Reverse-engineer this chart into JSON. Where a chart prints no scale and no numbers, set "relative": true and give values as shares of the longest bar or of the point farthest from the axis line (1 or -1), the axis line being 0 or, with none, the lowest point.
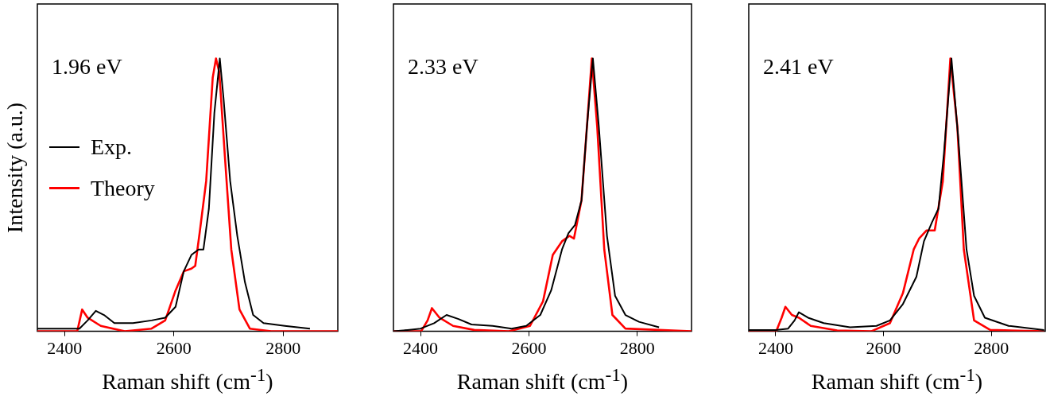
{
  "chart_data": [
    {
      "type": "line",
      "xlabel": "Raman shift (cm$^{-1}$)",
      "ylabel": "Intensity (a.u.)",
      "relative": true,
      "xlim": [
        2350,
        2900
      ],
      "xticks": [
        2400,
        2600,
        2800
      ],
      "legend": "left",
      "annotations": [
        "1.96 eV"
      ],
      "series": [
        {
          "name": "Exp.",
          "color": "#000000",
          "x": [
            2350,
            2427,
            2442,
            2457,
            2472,
            2491,
            2525,
            2559,
            2584,
            2603,
            2618,
            2632,
            2645,
            2654,
            2664,
            2674,
            2684,
            2691,
            2703,
            2716,
            2730,
            2745,
            2764,
            2803,
            2849
          ],
          "values": [
            0.01,
            0.01,
            0.04,
            0.075,
            0.06,
            0.03,
            0.03,
            0.04,
            0.05,
            0.09,
            0.22,
            0.28,
            0.3,
            0.3,
            0.45,
            0.8,
            1.0,
            0.85,
            0.55,
            0.35,
            0.18,
            0.06,
            0.03,
            0.02,
            0.01
          ]
        },
        {
          "name": "Theory",
          "color": "#ff0000",
          "x": [
            2350,
            2423,
            2432,
            2442,
            2466,
            2510,
            2559,
            2584,
            2603,
            2618,
            2632,
            2639,
            2647,
            2659,
            2671,
            2677,
            2683,
            2693,
            2705,
            2720,
            2739,
            2778,
            2900
          ],
          "values": [
            0,
            0,
            0.08,
            0.05,
            0.02,
            0,
            0.01,
            0.04,
            0.15,
            0.22,
            0.23,
            0.24,
            0.36,
            0.55,
            0.93,
            1.0,
            0.95,
            0.65,
            0.3,
            0.08,
            0.01,
            0,
            0
          ]
        }
      ]
    },
    {
      "type": "line",
      "xlabel": "Raman shift (cm$^{-1}$)",
      "relative": true,
      "xlim": [
        2350,
        2900
      ],
      "xticks": [
        2400,
        2600,
        2800
      ],
      "annotations": [
        "2.33 eV"
      ],
      "series": [
        {
          "color": "#000000",
          "x": [
            2350,
            2376,
            2400,
            2425,
            2448,
            2470,
            2494,
            2533,
            2568,
            2595,
            2621,
            2641,
            2661,
            2673,
            2685,
            2697,
            2707,
            2718,
            2729,
            2744,
            2759,
            2778,
            2803,
            2840
          ],
          "values": [
            0,
            0.005,
            0.01,
            0.03,
            0.06,
            0.045,
            0.025,
            0.02,
            0.01,
            0.02,
            0.06,
            0.15,
            0.3,
            0.36,
            0.39,
            0.48,
            0.75,
            1.0,
            0.75,
            0.35,
            0.13,
            0.06,
            0.035,
            0.015
          ]
        },
        {
          "color": "#ff0000",
          "x": [
            2350,
            2401,
            2413,
            2421,
            2435,
            2460,
            2499,
            2563,
            2602,
            2626,
            2644,
            2661,
            2675,
            2683,
            2697,
            2707,
            2716,
            2726,
            2739,
            2754,
            2778,
            2900
          ],
          "values": [
            0,
            0,
            0.04,
            0.085,
            0.05,
            0.02,
            0.005,
            0,
            0.02,
            0.11,
            0.28,
            0.33,
            0.35,
            0.34,
            0.48,
            0.75,
            1.0,
            0.75,
            0.3,
            0.06,
            0.01,
            0
          ]
        }
      ]
    },
    {
      "type": "line",
      "xlabel": "Raman shift (cm$^{-1}$)",
      "relative": true,
      "xlim": [
        2350,
        2900
      ],
      "xticks": [
        2400,
        2600,
        2800
      ],
      "annotations": [
        "2.41 eV"
      ],
      "series": [
        {
          "color": "#000000",
          "x": [
            2350,
            2400,
            2423,
            2435,
            2443,
            2460,
            2489,
            2538,
            2587,
            2612,
            2636,
            2661,
            2675,
            2690,
            2702,
            2712,
            2726,
            2739,
            2754,
            2768,
            2788,
            2832,
            2898
          ],
          "values": [
            0.005,
            0.005,
            0.01,
            0.04,
            0.07,
            0.05,
            0.03,
            0.015,
            0.02,
            0.04,
            0.1,
            0.2,
            0.33,
            0.4,
            0.45,
            0.65,
            1.0,
            0.7,
            0.3,
            0.13,
            0.05,
            0.02,
            0.005
          ]
        },
        {
          "color": "#ff0000",
          "x": [
            2350,
            2401,
            2411,
            2418,
            2430,
            2443,
            2465,
            2514,
            2577,
            2612,
            2636,
            2656,
            2666,
            2680,
            2695,
            2710,
            2724,
            2737,
            2749,
            2768,
            2798,
            2898
          ],
          "values": [
            0,
            0,
            0.05,
            0.09,
            0.06,
            0.05,
            0.02,
            0.003,
            0,
            0.03,
            0.14,
            0.3,
            0.34,
            0.37,
            0.37,
            0.55,
            1.0,
            0.75,
            0.3,
            0.04,
            0.005,
            0
          ]
        }
      ]
    }
  ]
}
